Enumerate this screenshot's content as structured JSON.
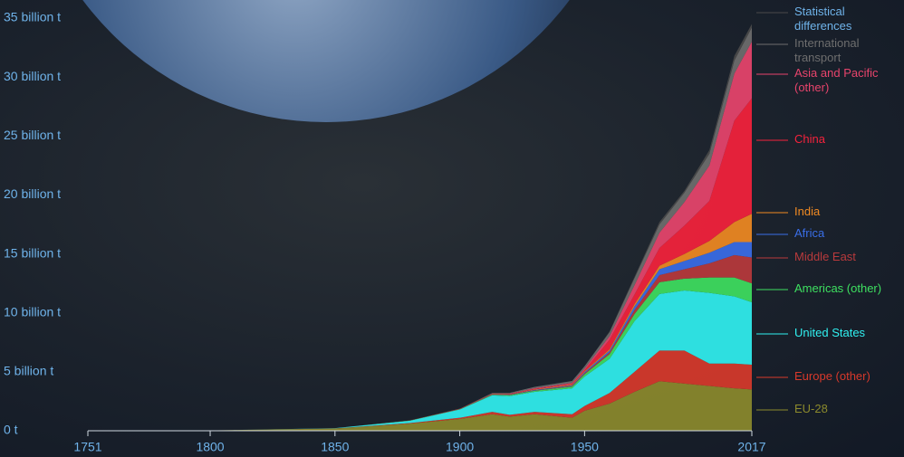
{
  "chart_data": {
    "type": "stacked_area",
    "x": [
      1751,
      1800,
      1850,
      1880,
      1900,
      1913,
      1920,
      1930,
      1945,
      1950,
      1960,
      1970,
      1980,
      1990,
      2000,
      2010,
      2017
    ],
    "xlim": [
      1751,
      2017
    ],
    "xticks": [
      1751,
      1800,
      1850,
      1900,
      1950,
      2017
    ],
    "ylim": [
      0,
      35
    ],
    "yticks": [
      {
        "value": 0,
        "label": "0 t"
      },
      {
        "value": 5,
        "label": "5 billion t"
      },
      {
        "value": 10,
        "label": "10 billion t"
      },
      {
        "value": 15,
        "label": "15 billion t"
      },
      {
        "value": 20,
        "label": "20 billion t"
      },
      {
        "value": 25,
        "label": "25 billion t"
      },
      {
        "value": 30,
        "label": "30 billion t"
      },
      {
        "value": 35,
        "label": "35 billion t"
      }
    ],
    "series": [
      {
        "name": "EU-28",
        "color": "#8c8a2c",
        "values": [
          0.01,
          0.03,
          0.19,
          0.6,
          1.0,
          1.4,
          1.2,
          1.4,
          1.1,
          1.7,
          2.3,
          3.3,
          4.2,
          4.0,
          3.8,
          3.6,
          3.5
        ]
      },
      {
        "name": "Europe (other)",
        "color": "#d8392b",
        "values": [
          0,
          0,
          0.01,
          0.05,
          0.1,
          0.2,
          0.15,
          0.2,
          0.3,
          0.4,
          0.9,
          1.7,
          2.6,
          2.8,
          1.9,
          2.1,
          2.1
        ]
      },
      {
        "name": "United States",
        "color": "#30f0f0",
        "values": [
          0,
          0,
          0.02,
          0.2,
          0.7,
          1.4,
          1.6,
          1.7,
          2.2,
          2.5,
          2.9,
          4.3,
          4.8,
          5.1,
          6.0,
          5.7,
          5.3
        ]
      },
      {
        "name": "Americas (other)",
        "color": "#3ee060",
        "values": [
          0,
          0,
          0,
          0.01,
          0.02,
          0.05,
          0.07,
          0.1,
          0.15,
          0.2,
          0.4,
          0.6,
          1.0,
          1.0,
          1.3,
          1.6,
          1.6
        ]
      },
      {
        "name": "Middle East",
        "color": "#b93a3c",
        "values": [
          0,
          0,
          0,
          0,
          0,
          0,
          0.01,
          0.02,
          0.05,
          0.08,
          0.15,
          0.35,
          0.6,
          0.8,
          1.2,
          1.9,
          2.2
        ]
      },
      {
        "name": "Africa",
        "color": "#3a6ee8",
        "values": [
          0,
          0,
          0,
          0,
          0.01,
          0.02,
          0.03,
          0.04,
          0.06,
          0.1,
          0.15,
          0.3,
          0.5,
          0.7,
          0.9,
          1.1,
          1.3
        ]
      },
      {
        "name": "India",
        "color": "#f08a22",
        "values": [
          0,
          0,
          0,
          0.01,
          0.02,
          0.03,
          0.03,
          0.05,
          0.06,
          0.07,
          0.12,
          0.2,
          0.3,
          0.6,
          1.0,
          1.7,
          2.4
        ]
      },
      {
        "name": "China",
        "color": "#f5223c",
        "values": [
          0,
          0,
          0,
          0,
          0.01,
          0.02,
          0.03,
          0.04,
          0.05,
          0.08,
          0.8,
          0.8,
          1.5,
          2.4,
          3.4,
          8.6,
          9.8
        ]
      },
      {
        "name": "Asia and Pacific (other)",
        "color": "#e8446c",
        "values": [
          0,
          0,
          0,
          0,
          0.01,
          0.03,
          0.04,
          0.07,
          0.1,
          0.15,
          0.3,
          0.8,
          1.3,
          2.0,
          3.0,
          4.0,
          4.8
        ]
      },
      {
        "name": "International transport",
        "color": "#6e6e6e",
        "values": [
          0,
          0,
          0,
          0,
          0,
          0.05,
          0.05,
          0.1,
          0.15,
          0.2,
          0.35,
          0.6,
          0.7,
          0.8,
          1.0,
          1.1,
          1.2
        ]
      },
      {
        "name": "Statistical differences",
        "color": "#4a4a4a",
        "values": [
          0,
          0,
          0,
          0,
          0,
          0,
          0,
          0,
          0,
          0,
          0.05,
          0.1,
          0.2,
          0.15,
          0.3,
          0.4,
          0.3
        ]
      }
    ]
  }
}
